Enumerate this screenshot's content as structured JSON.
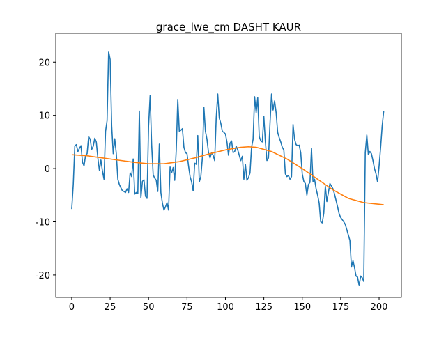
{
  "chart_data": {
    "type": "line",
    "title": "grace_lwe_cm DASHT KAUR",
    "xlim": [
      -10.4,
      214.5
    ],
    "ylim": [
      -24.2,
      25.4
    ],
    "xticks": [
      0,
      25,
      50,
      75,
      100,
      125,
      150,
      175,
      200
    ],
    "yticks": [
      -20,
      -10,
      0,
      10,
      20
    ],
    "series": [
      {
        "color": "#1f77b4",
        "values": [
          -7.6,
          -3,
          4.2,
          4.5,
          3.2,
          3.8,
          4.3,
          1.2,
          0.5,
          2.5,
          2.8,
          6,
          5.5,
          3.6,
          4.2,
          5.7,
          5,
          2,
          -0.3,
          1.6,
          -0.5,
          -2,
          7,
          9,
          22,
          20.5,
          8,
          2.8,
          5.6,
          2.8,
          -2,
          -3,
          -3.6,
          -4.2,
          -4.3,
          -4.5,
          -3.8,
          -4.5,
          -0.8,
          -1.5,
          1.8,
          -4.8,
          -4.5,
          -4.7,
          10.8,
          -5.5,
          -2.4,
          -2.1,
          -5.2,
          -5.6,
          8,
          13.7,
          4.5,
          -1.2,
          -1.8,
          -2.2,
          -4.3,
          4.6,
          -4.5,
          -6.5,
          -7.8,
          -7.2,
          -6.4,
          -7.8,
          0.3,
          -0.8,
          0.2,
          -2.2,
          3.5,
          13,
          7,
          7.2,
          7.5,
          4,
          3,
          2.8,
          0.5,
          -1.5,
          -2.5,
          -4.2,
          1,
          0.8,
          6.2,
          -2.5,
          -1.5,
          2,
          11.5,
          7,
          5.5,
          3,
          2,
          3,
          2.5,
          1.5,
          9.5,
          14,
          9.5,
          8.5,
          7,
          6.8,
          6.5,
          5,
          2.5,
          4.8,
          5.2,
          3,
          3.2,
          4.2,
          3.5,
          2.5,
          1.5,
          2.3,
          -2,
          0.8,
          -2.2,
          -1.7,
          -0.8,
          4,
          5.5,
          13.5,
          10.5,
          13.3,
          6,
          5.2,
          5,
          9.8,
          5,
          1.5,
          2,
          8.5,
          14,
          11,
          12.7,
          10.5,
          6.8,
          5.8,
          5,
          4,
          3.5,
          -1,
          -1.5,
          -1.3,
          -2,
          -1.5,
          8.3,
          5.5,
          4.5,
          4.3,
          4.4,
          3,
          -1,
          -2.4,
          -2.8,
          -5,
          -3,
          -2.6,
          3.8,
          -2.5,
          -2,
          -3.8,
          -5,
          -6.5,
          -10,
          -10.2,
          -8.4,
          -3.3,
          -6.2,
          -4.5,
          -2.8,
          -3.3,
          -3.8,
          -4.8,
          -6,
          -7.2,
          -8.5,
          -9.2,
          -9.6,
          -10,
          -10.5,
          -11.5,
          -12.5,
          -13.5,
          -18.5,
          -17.3,
          -18.6,
          -20.2,
          -20.4,
          -22,
          -20.2,
          -20.5,
          -21.2,
          3,
          6.3,
          2.6,
          3.2,
          2.8,
          1.5,
          0,
          -1,
          -2.5,
          0.5,
          4,
          8,
          10.8
        ]
      },
      {
        "color": "#ff7f0e",
        "x": [
          0,
          10,
          20,
          30,
          40,
          50,
          60,
          70,
          80,
          90,
          100,
          110,
          115,
          120,
          130,
          140,
          150,
          160,
          170,
          180,
          190,
          200,
          203
        ],
        "values": [
          2.6,
          2.4,
          2.0,
          1.6,
          1.2,
          0.9,
          0.9,
          1.3,
          2.0,
          2.8,
          3.5,
          4.0,
          4.1,
          4.0,
          3.2,
          1.8,
          0.0,
          -2.0,
          -4.0,
          -5.6,
          -6.4,
          -6.7,
          -6.8
        ]
      }
    ]
  }
}
